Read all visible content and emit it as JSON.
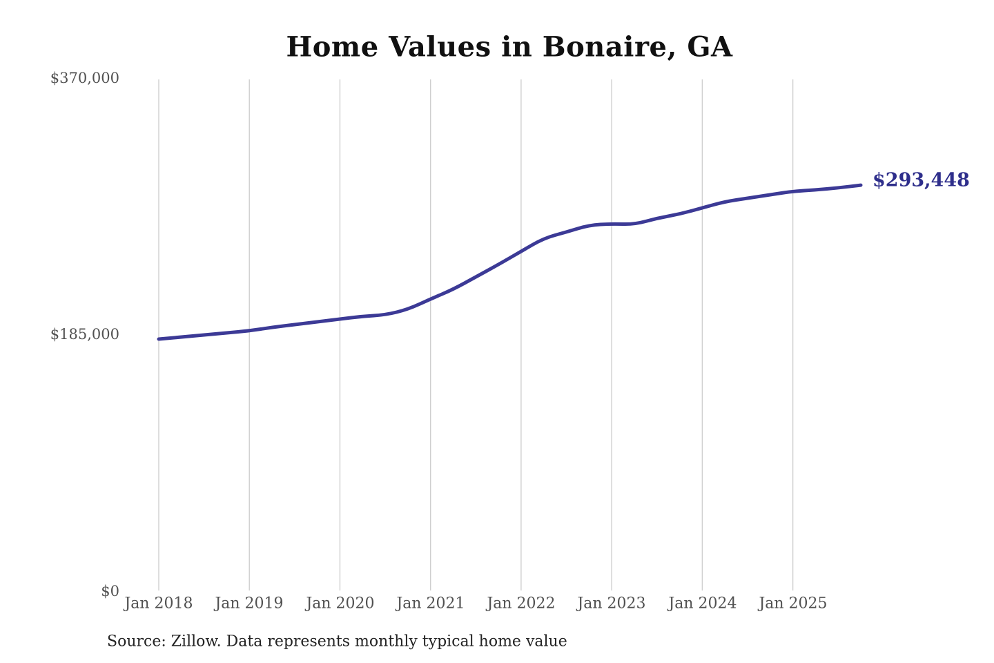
{
  "title": "Home Values in Bonaire, GA",
  "source_note": "Source: Zillow. Data represents monthly typical home value",
  "end_value_label": "$293,448",
  "colors": {
    "line": "#3c3a96",
    "end_label": "#2e2e8b",
    "gridline": "#cfcfcf",
    "tick_text": "#515151",
    "title_text": "#111111",
    "background": "#ffffff"
  },
  "chart_data": {
    "type": "line",
    "title": "Home Values in Bonaire, GA",
    "xlabel": "",
    "ylabel": "",
    "ylim": [
      0,
      370000
    ],
    "grid": "vertical-only",
    "legend": "none",
    "y_tick_labels": [
      "$370,000",
      "$185,000",
      "$0"
    ],
    "y_tick_values": [
      370000,
      185000,
      0
    ],
    "x_tick_labels": [
      "Jan 2018",
      "Jan 2019",
      "Jan 2020",
      "Jan 2021",
      "Jan 2022",
      "Jan 2023",
      "Jan 2024",
      "Jan 2025"
    ],
    "final_value": 293448,
    "series": [
      {
        "name": "Typical home value",
        "points": [
          {
            "month": "2018-01",
            "value": 182000
          },
          {
            "month": "2018-04",
            "value": 183500
          },
          {
            "month": "2018-07",
            "value": 185000
          },
          {
            "month": "2018-10",
            "value": 186500
          },
          {
            "month": "2019-01",
            "value": 188000
          },
          {
            "month": "2019-04",
            "value": 190500
          },
          {
            "month": "2019-07",
            "value": 192500
          },
          {
            "month": "2019-10",
            "value": 194500
          },
          {
            "month": "2020-01",
            "value": 196500
          },
          {
            "month": "2020-04",
            "value": 198500
          },
          {
            "month": "2020-07",
            "value": 199500
          },
          {
            "month": "2020-10",
            "value": 203500
          },
          {
            "month": "2021-01",
            "value": 211000
          },
          {
            "month": "2021-04",
            "value": 218000
          },
          {
            "month": "2021-07",
            "value": 227000
          },
          {
            "month": "2021-10",
            "value": 236000
          },
          {
            "month": "2022-01",
            "value": 245500
          },
          {
            "month": "2022-04",
            "value": 255000
          },
          {
            "month": "2022-07",
            "value": 259500
          },
          {
            "month": "2022-10",
            "value": 264500
          },
          {
            "month": "2023-01",
            "value": 265500
          },
          {
            "month": "2023-04",
            "value": 265000
          },
          {
            "month": "2023-07",
            "value": 269500
          },
          {
            "month": "2023-10",
            "value": 272500
          },
          {
            "month": "2024-01",
            "value": 277000
          },
          {
            "month": "2024-04",
            "value": 281500
          },
          {
            "month": "2024-07",
            "value": 284000
          },
          {
            "month": "2024-10",
            "value": 286500
          },
          {
            "month": "2025-01",
            "value": 289000
          },
          {
            "month": "2025-04",
            "value": 290000
          },
          {
            "month": "2025-07",
            "value": 291500
          },
          {
            "month": "2025-10",
            "value": 293448
          }
        ]
      }
    ]
  }
}
